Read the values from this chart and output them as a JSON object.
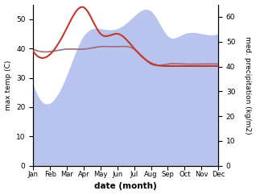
{
  "months": [
    1,
    2,
    3,
    4,
    5,
    6,
    7,
    8,
    9,
    10,
    11,
    12
  ],
  "month_labels": [
    "Jan",
    "Feb",
    "Mar",
    "Apr",
    "May",
    "Jun",
    "Jul",
    "Aug",
    "Sep",
    "Oct",
    "Nov",
    "Dec"
  ],
  "temp": [
    39,
    38,
    47,
    54,
    45,
    45,
    40,
    35,
    34,
    34,
    34,
    34
  ],
  "precip": [
    32,
    25,
    36,
    52,
    55,
    55,
    60,
    62,
    52,
    53,
    53,
    53
  ],
  "med_precip": [
    47,
    46,
    47,
    47,
    48,
    48,
    47,
    41,
    41,
    41,
    41,
    41
  ],
  "temp_color": "#c0392b",
  "precip_fill_color": "#b8c4ee",
  "med_precip_color": "#9b6b80",
  "ylabel_left": "max temp (C)",
  "ylabel_right": "med. precipitation (kg/m2)",
  "xlabel": "date (month)",
  "ylim_left": [
    0,
    55
  ],
  "ylim_right": [
    0,
    65
  ],
  "yticks_left": [
    0,
    10,
    20,
    30,
    40,
    50
  ],
  "yticks_right": [
    0,
    10,
    20,
    30,
    40,
    50,
    60
  ]
}
